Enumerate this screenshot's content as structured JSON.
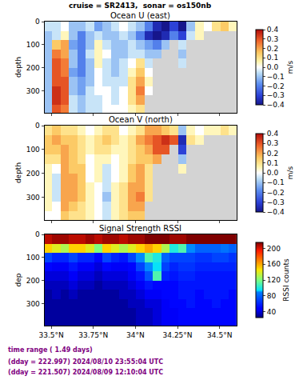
{
  "title": "cruise = SR2413,  sonar = os150nb",
  "footer": [
    "time range ( 1.49 days)",
    "(dday = 222.997) 2024/08/10 23:55:04 UTC",
    "(dday = 221.507) 2024/08/09 12:10:04 UTC"
  ],
  "chart_data": [
    {
      "type": "heatmap",
      "title": "Ocean U (east)",
      "ylabel": "depth",
      "tick_labels": "y",
      "x": [
        33.48,
        33.53,
        33.58,
        33.63,
        33.68,
        33.73,
        33.78,
        33.83,
        33.88,
        33.93,
        33.98,
        34.03,
        34.08,
        34.13,
        34.18,
        34.23,
        34.28,
        34.33,
        34.38,
        34.43,
        34.48,
        34.53,
        34.58
      ],
      "y": [
        20,
        60,
        100,
        140,
        180,
        220,
        260,
        300,
        340,
        380
      ],
      "z": [
        [
          -0.05,
          -0.05,
          0.0,
          -0.1,
          -0.1,
          -0.05,
          -0.15,
          -0.1,
          -0.05,
          0.0,
          -0.05,
          -0.1,
          -0.2,
          -0.35,
          -0.4,
          -0.3,
          -0.4,
          -0.1,
          0.05,
          0.0,
          0.1,
          0.15,
          0.05
        ],
        [
          -0.1,
          -0.05,
          0.05,
          -0.1,
          -0.2,
          -0.1,
          -0.05,
          -0.1,
          -0.1,
          -0.05,
          -0.1,
          -0.2,
          -0.35,
          -0.4,
          -0.35,
          -0.2,
          -0.3,
          -0.05,
          0.05,
          null,
          null,
          null,
          null
        ],
        [
          -0.1,
          0.15,
          0.2,
          -0.15,
          -0.2,
          -0.1,
          0.05,
          -0.05,
          -0.1,
          -0.1,
          -0.05,
          -0.1,
          -0.15,
          -0.2,
          -0.1,
          null,
          -0.05,
          null,
          null,
          null,
          null,
          null,
          null
        ],
        [
          -0.1,
          0.25,
          0.2,
          -0.1,
          -0.2,
          -0.05,
          0.05,
          0.0,
          -0.1,
          -0.1,
          -0.05,
          -0.05,
          -0.1,
          -0.1,
          null,
          null,
          -0.1,
          null,
          null,
          null,
          null,
          null,
          null
        ],
        [
          -0.1,
          0.3,
          0.25,
          -0.1,
          -0.2,
          -0.1,
          0.05,
          -0.05,
          -0.1,
          -0.05,
          0.0,
          0.1,
          -0.05,
          null,
          null,
          null,
          -0.05,
          null,
          null,
          null,
          null,
          null,
          null
        ],
        [
          -0.1,
          0.3,
          0.25,
          -0.15,
          -0.2,
          -0.1,
          0.0,
          -0.05,
          -0.1,
          -0.05,
          0.05,
          0.15,
          0.0,
          null,
          null,
          null,
          null,
          null,
          null,
          null,
          null,
          null,
          null
        ],
        [
          -0.1,
          0.3,
          0.3,
          -0.1,
          -0.15,
          -0.1,
          0.0,
          -0.05,
          -0.05,
          -0.05,
          0.1,
          0.2,
          0.05,
          null,
          null,
          null,
          null,
          null,
          null,
          null,
          null,
          null,
          null
        ],
        [
          -0.1,
          0.35,
          0.3,
          -0.1,
          -0.15,
          -0.05,
          0.0,
          0.0,
          -0.05,
          0.0,
          0.1,
          0.25,
          0.0,
          null,
          null,
          null,
          null,
          null,
          null,
          null,
          null,
          null,
          null
        ],
        [
          -0.1,
          0.35,
          0.3,
          -0.05,
          -0.1,
          -0.05,
          -0.05,
          0.0,
          -0.05,
          0.0,
          0.1,
          0.2,
          null,
          null,
          null,
          null,
          null,
          null,
          null,
          null,
          null,
          null,
          null
        ],
        [
          -0.1,
          0.3,
          0.25,
          -0.05,
          -0.1,
          -0.05,
          -0.05,
          0.0,
          0.0,
          0.0,
          0.05,
          0.1,
          null,
          null,
          null,
          null,
          null,
          null,
          null,
          null,
          null,
          null,
          null
        ]
      ],
      "xlim": [
        33.46,
        34.6
      ],
      "xticks": [
        {
          "value": 33.5,
          "label": "33.5°N"
        },
        {
          "value": 33.75,
          "label": "33.75°N"
        },
        {
          "value": 34,
          "label": "34°N"
        },
        {
          "value": 34.25,
          "label": "34.25°N"
        },
        {
          "value": 34.5,
          "label": "34.5°N"
        }
      ],
      "ylim": [
        0,
        395
      ],
      "yticks": [
        0,
        100,
        200,
        300
      ],
      "colorbar": {
        "title": "m/s",
        "range": [
          -0.4,
          0.4
        ],
        "ticks": [
          0.4,
          0.3,
          0.2,
          0.1,
          {
            "value": 0,
            "label": "0.0"
          },
          {
            "value": -0.1,
            "label": "−0.1"
          },
          {
            "value": -0.2,
            "label": "−0.2"
          },
          {
            "value": -0.3,
            "label": "−0.3"
          },
          {
            "value": -0.4,
            "label": "−0.4"
          }
        ]
      }
    },
    {
      "type": "heatmap",
      "title": "Ocean V (north)",
      "ylabel": "depth",
      "tick_labels": "y",
      "x": [
        33.48,
        33.53,
        33.58,
        33.63,
        33.68,
        33.73,
        33.78,
        33.83,
        33.88,
        33.93,
        33.98,
        34.03,
        34.08,
        34.13,
        34.18,
        34.23,
        34.28,
        34.33,
        34.38,
        34.43,
        34.48,
        34.53,
        34.58
      ],
      "y": [
        20,
        60,
        100,
        140,
        180,
        220,
        260,
        300,
        340,
        380
      ],
      "z": [
        [
          0.1,
          0.15,
          0.1,
          0.1,
          0.05,
          0.0,
          0.05,
          0.1,
          0.1,
          0.0,
          0.05,
          0.1,
          0.2,
          0.2,
          0.15,
          0.1,
          -0.1,
          0.05,
          0.0,
          0.05,
          0.05,
          0.1,
          0.05
        ],
        [
          0.15,
          0.2,
          0.15,
          0.15,
          0.1,
          0.05,
          0.1,
          0.15,
          0.1,
          0.05,
          0.1,
          0.2,
          0.25,
          0.3,
          0.35,
          0.3,
          -0.35,
          0.1,
          0.05,
          null,
          null,
          null,
          null
        ],
        [
          0.15,
          0.15,
          0.2,
          0.15,
          0.1,
          0.05,
          0.1,
          0.1,
          0.05,
          0.05,
          0.1,
          0.15,
          0.2,
          0.3,
          0.3,
          null,
          -0.3,
          null,
          null,
          null,
          null,
          null,
          null
        ],
        [
          0.1,
          0.1,
          0.2,
          0.15,
          0.1,
          0.0,
          0.05,
          0.05,
          0.0,
          0.05,
          0.1,
          0.15,
          0.15,
          0.2,
          null,
          null,
          -0.1,
          null,
          null,
          null,
          null,
          null,
          null
        ],
        [
          0.05,
          0.0,
          0.2,
          0.15,
          0.15,
          0.0,
          0.05,
          -0.05,
          0.0,
          0.05,
          0.15,
          0.2,
          0.1,
          null,
          null,
          null,
          0.05,
          null,
          null,
          null,
          null,
          null,
          null
        ],
        [
          0.05,
          -0.05,
          0.2,
          0.2,
          0.15,
          0.0,
          0.05,
          -0.05,
          0.0,
          0.05,
          0.15,
          0.2,
          0.1,
          null,
          null,
          null,
          null,
          null,
          null,
          null,
          null,
          null,
          null
        ],
        [
          0.05,
          -0.05,
          0.2,
          0.2,
          0.15,
          0.05,
          0.0,
          -0.05,
          0.05,
          0.1,
          0.2,
          0.2,
          0.1,
          null,
          null,
          null,
          null,
          null,
          null,
          null,
          null,
          null,
          null
        ],
        [
          0.05,
          -0.05,
          0.2,
          0.2,
          0.15,
          0.05,
          0.0,
          -0.1,
          0.05,
          0.1,
          0.2,
          0.25,
          0.1,
          null,
          null,
          null,
          null,
          null,
          null,
          null,
          null,
          null,
          null
        ],
        [
          0.05,
          0.0,
          0.2,
          0.15,
          0.1,
          0.05,
          0.0,
          -0.05,
          0.05,
          0.1,
          0.2,
          0.2,
          null,
          null,
          null,
          null,
          null,
          null,
          null,
          null,
          null,
          null,
          null
        ],
        [
          0.0,
          0.0,
          0.15,
          0.1,
          0.1,
          0.05,
          0.0,
          -0.05,
          0.05,
          0.1,
          0.15,
          0.15,
          null,
          null,
          null,
          null,
          null,
          null,
          null,
          null,
          null,
          null,
          null
        ]
      ],
      "xlim": [
        33.46,
        34.6
      ],
      "xticks": [
        {
          "value": 33.5,
          "label": "33.5°N"
        },
        {
          "value": 33.75,
          "label": "33.75°N"
        },
        {
          "value": 34,
          "label": "34°N"
        },
        {
          "value": 34.25,
          "label": "34.25°N"
        },
        {
          "value": 34.5,
          "label": "34.5°N"
        }
      ],
      "ylim": [
        0,
        395
      ],
      "yticks": [
        0,
        100,
        200,
        300
      ],
      "colorbar": {
        "title": "m/s",
        "range": [
          -0.4,
          0.4
        ],
        "ticks": [
          0.4,
          0.3,
          0.2,
          0.1,
          {
            "value": 0,
            "label": "0.0"
          },
          {
            "value": -0.1,
            "label": "−0.1"
          },
          {
            "value": -0.2,
            "label": "−0.2"
          },
          {
            "value": -0.3,
            "label": "−0.3"
          },
          {
            "value": -0.4,
            "label": "−0.4"
          }
        ]
      }
    },
    {
      "type": "heatmap",
      "title": "Signal Strength RSSI",
      "ylabel": "dep",
      "x": [
        33.48,
        33.53,
        33.58,
        33.63,
        33.68,
        33.73,
        33.78,
        33.83,
        33.88,
        33.93,
        33.98,
        34.03,
        34.08,
        34.13,
        34.18,
        34.23,
        34.28,
        34.33,
        34.38,
        34.43,
        34.48,
        34.53,
        34.58
      ],
      "y": [
        20,
        60,
        100,
        140,
        180,
        220,
        260,
        300,
        340,
        380
      ],
      "z": [
        [
          205,
          210,
          210,
          205,
          205,
          210,
          205,
          210,
          210,
          205,
          210,
          210,
          215,
          215,
          215,
          210,
          210,
          215,
          215,
          215,
          215,
          215,
          215
        ],
        [
          150,
          140,
          130,
          150,
          150,
          140,
          120,
          150,
          140,
          130,
          140,
          150,
          160,
          150,
          130,
          100,
          110,
          90,
          80,
          80,
          80,
          85,
          80
        ],
        [
          70,
          60,
          60,
          70,
          60,
          60,
          50,
          70,
          60,
          55,
          70,
          90,
          110,
          100,
          80,
          70,
          70,
          70,
          65,
          65,
          70,
          70,
          65
        ],
        [
          50,
          45,
          45,
          55,
          45,
          45,
          40,
          50,
          45,
          45,
          50,
          70,
          90,
          95,
          70,
          60,
          65,
          65,
          60,
          60,
          60,
          60,
          60
        ],
        [
          40,
          40,
          40,
          45,
          40,
          40,
          35,
          40,
          40,
          40,
          45,
          55,
          75,
          110,
          60,
          55,
          60,
          60,
          55,
          55,
          55,
          55,
          55
        ],
        [
          35,
          35,
          35,
          40,
          35,
          35,
          30,
          35,
          35,
          35,
          40,
          45,
          55,
          50,
          50,
          50,
          55,
          55,
          55,
          55,
          55,
          55,
          55
        ],
        [
          30,
          35,
          30,
          35,
          30,
          30,
          30,
          30,
          30,
          35,
          35,
          40,
          45,
          45,
          50,
          50,
          55,
          55,
          50,
          55,
          55,
          55,
          50
        ],
        [
          30,
          30,
          30,
          30,
          30,
          30,
          30,
          30,
          30,
          30,
          35,
          35,
          40,
          40,
          45,
          50,
          50,
          55,
          50,
          50,
          55,
          50,
          50
        ],
        [
          30,
          30,
          30,
          30,
          30,
          30,
          30,
          30,
          30,
          30,
          30,
          35,
          35,
          40,
          45,
          45,
          50,
          50,
          50,
          50,
          50,
          50,
          50
        ],
        [
          30,
          30,
          30,
          30,
          30,
          30,
          30,
          30,
          30,
          30,
          30,
          35,
          35,
          40,
          45,
          45,
          50,
          50,
          50,
          50,
          50,
          50,
          50
        ]
      ],
      "xlim": [
        33.46,
        34.6
      ],
      "xticks": [
        {
          "value": 33.5,
          "label": "33.5°N"
        },
        {
          "value": 33.75,
          "label": "33.75°N"
        },
        {
          "value": 34,
          "label": "34°N"
        },
        {
          "value": 34.25,
          "label": "34.25°N"
        },
        {
          "value": 34.5,
          "label": "34.5°N"
        }
      ],
      "ylim": [
        0,
        395
      ],
      "yticks": [
        0,
        100,
        200,
        300
      ],
      "colorbar": {
        "title": "RSSI counts",
        "range": [
          25,
          215
        ],
        "ticks": [
          40,
          80,
          120,
          160,
          200
        ]
      }
    }
  ]
}
